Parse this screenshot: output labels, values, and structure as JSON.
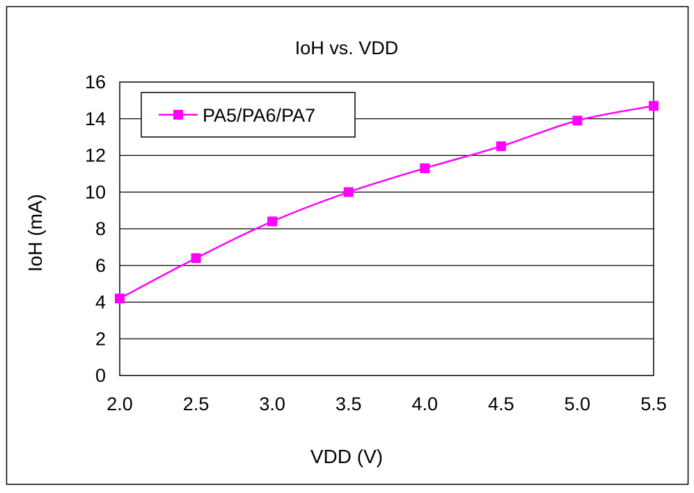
{
  "chart_data": {
    "type": "line",
    "title": "IoH vs. VDD",
    "xlabel": "VDD (V)",
    "ylabel": "IoH (mA)",
    "x": [
      2.0,
      2.5,
      3.0,
      3.5,
      4.0,
      4.5,
      5.0,
      5.5
    ],
    "x_tick_labels": [
      "2.0",
      "2.5",
      "3.0",
      "3.5",
      "4.0",
      "4.5",
      "5.0",
      "5.5"
    ],
    "y_tick_labels": [
      "0",
      "2",
      "4",
      "6",
      "8",
      "10",
      "12",
      "14",
      "16"
    ],
    "xlim": [
      2.0,
      5.5
    ],
    "ylim": [
      0,
      16
    ],
    "grid": "horizontal",
    "legend_position": "top-left",
    "series": [
      {
        "name": "PA5/PA6/PA7",
        "color": "#ff00ff",
        "marker": "square",
        "values": [
          4.2,
          6.4,
          8.4,
          10.0,
          11.3,
          12.5,
          13.9,
          14.7
        ]
      }
    ]
  }
}
